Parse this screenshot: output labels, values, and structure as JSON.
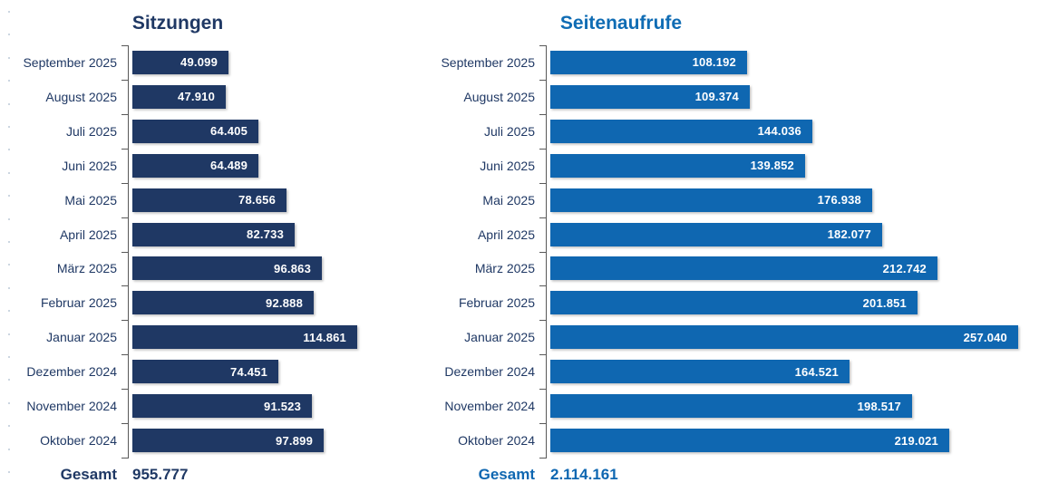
{
  "chart_data": [
    {
      "type": "bar",
      "orientation": "horizontal",
      "title": "Sitzungen",
      "categories": [
        "September 2025",
        "August 2025",
        "Juli 2025",
        "Juni 2025",
        "Mai 2025",
        "April 2025",
        "März 2025",
        "Februar 2025",
        "Januar 2025",
        "Dezember 2024",
        "November 2024",
        "Oktober 2024"
      ],
      "values": [
        49099,
        47910,
        64405,
        64489,
        78656,
        82733,
        96863,
        92888,
        114861,
        74451,
        91523,
        97899
      ],
      "data_labels": [
        "49.099",
        "47.910",
        "64.405",
        "64.489",
        "78.656",
        "82.733",
        "96.863",
        "92.888",
        "114.861",
        "74.451",
        "91.523",
        "97.899"
      ],
      "data_label_position": "inside-end",
      "total_label": "Gesamt",
      "total_value_label": "955.777",
      "total": 955777,
      "xlim": [
        0,
        120000
      ],
      "grid": false,
      "legend": false,
      "bar_color": "#1F3864",
      "title_color": "#1F3864",
      "total_color": "#1F3864",
      "category_label_color": "#1F3864"
    },
    {
      "type": "bar",
      "orientation": "horizontal",
      "title": "Seitenaufrufe",
      "categories": [
        "September 2025",
        "August 2025",
        "Juli 2025",
        "Juni 2025",
        "Mai 2025",
        "April 2025",
        "März 2025",
        "Februar 2025",
        "Januar 2025",
        "Dezember 2024",
        "November 2024",
        "Oktober 2024"
      ],
      "values": [
        108192,
        109374,
        144036,
        139852,
        176938,
        182077,
        212742,
        201851,
        257040,
        164521,
        198517,
        219021
      ],
      "data_labels": [
        "108.192",
        "109.374",
        "144.036",
        "139.852",
        "176.938",
        "182.077",
        "212.742",
        "201.851",
        "257.040",
        "164.521",
        "198.517",
        "219.021"
      ],
      "data_label_position": "inside-end",
      "total_label": "Gesamt",
      "total_value_label": "2.114.161",
      "total": 2114161,
      "xlim": [
        0,
        260000
      ],
      "grid": false,
      "legend": false,
      "bar_color": "#0F67B1",
      "title_color": "#0F6CB4",
      "total_color": "#0F67B1",
      "category_label_color": "#1F3864"
    }
  ],
  "decoration": {
    "axis_color": "#595959",
    "edge_dot_color": "#9FB0C6",
    "value_label_color": "#FFFFFF"
  }
}
